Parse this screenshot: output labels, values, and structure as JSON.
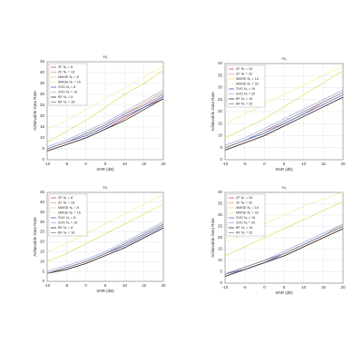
{
  "chart_data": [
    {
      "type": "line",
      "title": "H₁",
      "xlabel": "SNR (dB)",
      "ylabel": "Achievable Data Rate",
      "x": [
        -10,
        -5,
        0,
        5,
        10,
        15,
        20
      ],
      "xlim": [
        -10,
        20
      ],
      "xticks": [
        -10,
        -5,
        0,
        5,
        10,
        15,
        20
      ],
      "ylim": [
        0,
        45
      ],
      "yticks": [
        0,
        5,
        10,
        15,
        20,
        25,
        30,
        35,
        40,
        45
      ],
      "grid": true,
      "legend": "upper left",
      "series": [
        {
          "name": "ZF Nₜ = 8",
          "color": "#d9534f",
          "values": [
            4,
            7,
            10,
            14,
            19,
            24,
            28
          ]
        },
        {
          "name": "ZF Nₜ = 16",
          "color": "#ee9999",
          "values": [
            5,
            8,
            12,
            16,
            21,
            26,
            31
          ]
        },
        {
          "name": "MMSE Nₜ = 8",
          "color": "#e6e070",
          "values": [
            8,
            13,
            18,
            24,
            30,
            35,
            41
          ]
        },
        {
          "name": "MMSE Nₜ = 16",
          "color": "#f2f0b0",
          "values": [
            14,
            18,
            23,
            28,
            33,
            38,
            43
          ]
        },
        {
          "name": "SVD Nₜ = 8",
          "color": "#4060c0",
          "values": [
            5,
            8,
            11,
            15,
            20,
            24,
            29
          ]
        },
        {
          "name": "SVD Nₜ = 16",
          "color": "#a0b0e0",
          "values": [
            6,
            9,
            13,
            17,
            22,
            27,
            32
          ]
        },
        {
          "name": "BF Nₜ = 8",
          "color": "#333333",
          "values": [
            4,
            7,
            10,
            14,
            18,
            23,
            28
          ]
        },
        {
          "name": "BF Nₜ = 16",
          "color": "#888888",
          "values": [
            5,
            8,
            12,
            16,
            21,
            25,
            30
          ]
        }
      ]
    },
    {
      "type": "line",
      "title": "H₂",
      "xlabel": "SNR (dB)",
      "ylabel": "Achievable Data Rate",
      "x": [
        -10,
        -5,
        0,
        5,
        10,
        15,
        20
      ],
      "xlim": [
        -10,
        20
      ],
      "xticks": [
        -10,
        -5,
        0,
        5,
        10,
        15,
        20
      ],
      "ylim": [
        0,
        40
      ],
      "yticks": [
        0,
        5,
        10,
        15,
        20,
        25,
        30,
        35,
        40
      ],
      "grid": true,
      "legend": "upper left",
      "series": [
        {
          "name": "ZF Nₜ = 16",
          "color": "#d9534f",
          "values": [
            4,
            7,
            10,
            14,
            18,
            22,
            26
          ]
        },
        {
          "name": "ZF Nₜ = 32",
          "color": "#ee9999",
          "values": [
            5,
            8,
            12,
            15,
            19,
            24,
            28
          ]
        },
        {
          "name": "MMSE Nₜ = 16",
          "color": "#e6e070",
          "values": [
            9,
            13,
            17,
            22,
            27,
            32,
            37
          ]
        },
        {
          "name": "MMSE Nₜ = 32",
          "color": "#f2f0b0",
          "values": [
            15,
            19,
            23,
            27,
            31,
            35,
            39
          ]
        },
        {
          "name": "SVD Nₜ = 16",
          "color": "#4060c0",
          "values": [
            5,
            8,
            11,
            15,
            19,
            23,
            27
          ]
        },
        {
          "name": "SVD Nₜ = 32",
          "color": "#a0b0e0",
          "values": [
            6,
            9,
            13,
            17,
            21,
            25,
            29
          ]
        },
        {
          "name": "BF Nₜ = 16",
          "color": "#333333",
          "values": [
            4,
            7,
            10,
            14,
            18,
            22,
            26
          ]
        },
        {
          "name": "BF Nₜ = 32",
          "color": "#888888",
          "values": [
            5,
            8,
            12,
            16,
            20,
            24,
            28
          ]
        }
      ]
    },
    {
      "type": "line",
      "title": "H₃",
      "xlabel": "SNR (dB)",
      "ylabel": "Achievable Data Rate",
      "x": [
        -10,
        -5,
        0,
        5,
        10,
        15,
        20
      ],
      "xlim": [
        -10,
        20
      ],
      "xticks": [
        -10,
        -5,
        0,
        5,
        10,
        15,
        20
      ],
      "ylim": [
        0,
        45
      ],
      "yticks": [
        0,
        5,
        10,
        15,
        20,
        25,
        30,
        35,
        40,
        45
      ],
      "grid": true,
      "legend": "upper left",
      "series": [
        {
          "name": "ZF Nₜ = 8",
          "color": "#d9534f",
          "values": [
            4,
            6,
            9,
            13,
            17,
            22,
            27
          ]
        },
        {
          "name": "ZF Nₜ = 16",
          "color": "#ee9999",
          "values": [
            4,
            7,
            10,
            14,
            19,
            24,
            29
          ]
        },
        {
          "name": "MMSE Nₜ = 8",
          "color": "#e6e070",
          "values": [
            10,
            14,
            19,
            24,
            29,
            34,
            39
          ]
        },
        {
          "name": "MMSE Nₜ = 16",
          "color": "#f2f0b0",
          "values": [
            15,
            19,
            24,
            29,
            34,
            39,
            44
          ]
        },
        {
          "name": "SVD Nₜ = 8",
          "color": "#4060c0",
          "values": [
            4,
            7,
            10,
            14,
            18,
            23,
            28
          ]
        },
        {
          "name": "SVD Nₜ = 16",
          "color": "#a0b0e0",
          "values": [
            5,
            8,
            11,
            15,
            20,
            25,
            30
          ]
        },
        {
          "name": "BF Nₜ = 8",
          "color": "#333333",
          "values": [
            4,
            6,
            9,
            13,
            17,
            22,
            27
          ]
        },
        {
          "name": "BF Nₜ = 16",
          "color": "#888888",
          "values": [
            4,
            7,
            10,
            14,
            19,
            24,
            29
          ]
        }
      ]
    },
    {
      "type": "line",
      "title": "H₄",
      "xlabel": "SNR (dB)",
      "ylabel": "Achievable Data Rate",
      "x": [
        -10,
        -5,
        0,
        5,
        10,
        15,
        20
      ],
      "xlim": [
        -10,
        20
      ],
      "xticks": [
        -10,
        -5,
        0,
        5,
        10,
        15,
        20
      ],
      "ylim": [
        0,
        40
      ],
      "yticks": [
        0,
        5,
        10,
        15,
        20,
        25,
        30,
        35,
        40
      ],
      "grid": true,
      "legend": "upper left",
      "series": [
        {
          "name": "ZF Nₜ = 16",
          "color": "#d9534f",
          "values": [
            3,
            6,
            9,
            12,
            16,
            20,
            24
          ]
        },
        {
          "name": "ZF Nₜ = 32",
          "color": "#ee9999",
          "values": [
            4,
            7,
            10,
            13,
            17,
            21,
            26
          ]
        },
        {
          "name": "MMSE Nₜ = 16",
          "color": "#e6e070",
          "values": [
            12,
            16,
            20,
            24,
            28,
            32,
            36
          ]
        },
        {
          "name": "MMSE Nₜ = 32",
          "color": "#f2f0b0",
          "values": [
            18,
            22,
            26,
            30,
            34,
            37,
            40
          ]
        },
        {
          "name": "SVD Nₜ = 16",
          "color": "#4060c0",
          "values": [
            4,
            6,
            9,
            13,
            17,
            21,
            25
          ]
        },
        {
          "name": "SVD Nₜ = 32",
          "color": "#a0b0e0",
          "values": [
            4,
            7,
            10,
            14,
            18,
            22,
            26
          ]
        },
        {
          "name": "BF Nₜ = 16",
          "color": "#333333",
          "values": [
            3,
            6,
            9,
            12,
            16,
            20,
            24
          ]
        },
        {
          "name": "BF Nₜ = 32",
          "color": "#888888",
          "values": [
            4,
            7,
            10,
            13,
            17,
            21,
            25
          ]
        }
      ]
    }
  ]
}
